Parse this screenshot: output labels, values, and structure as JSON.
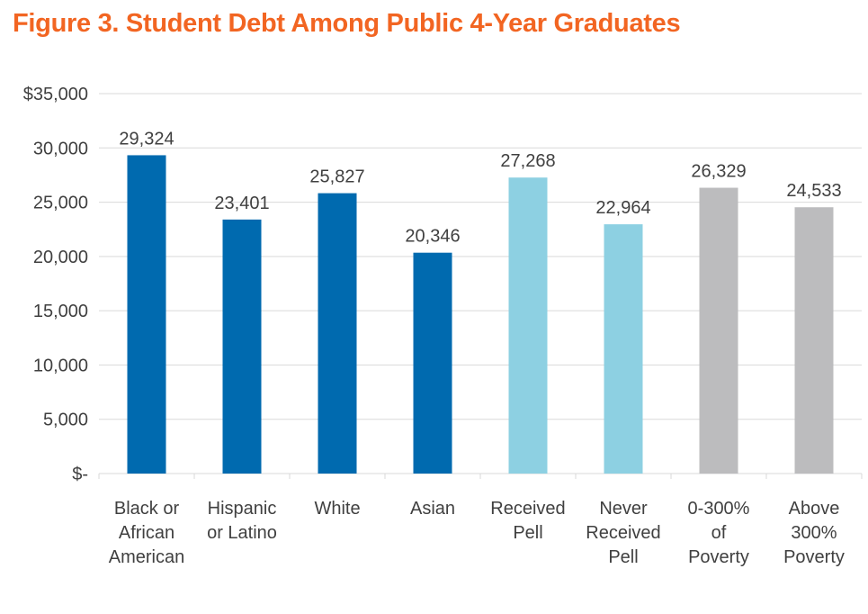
{
  "title": "Figure 3. Student Debt Among Public 4-Year Graduates",
  "chart_data": {
    "type": "bar",
    "title": "Figure 3. Student Debt Among Public 4-Year Graduates",
    "categories": [
      [
        "Black or",
        "African",
        "American"
      ],
      [
        "Hispanic",
        "or Latino"
      ],
      [
        "White"
      ],
      [
        "Asian"
      ],
      [
        "Received",
        "Pell"
      ],
      [
        "Never",
        "Received",
        "Pell"
      ],
      [
        "0-300%",
        "of",
        "Poverty"
      ],
      [
        "Above",
        "300%",
        "Poverty"
      ]
    ],
    "values": [
      29324,
      23401,
      25827,
      20346,
      27268,
      22964,
      26329,
      24533
    ],
    "data_labels": [
      "29,324",
      "23,401",
      "25,827",
      "20,346",
      "27,268",
      "22,964",
      "26,329",
      "24,533"
    ],
    "bar_colors": [
      "#006aaf",
      "#006aaf",
      "#006aaf",
      "#006aaf",
      "#8dd0e2",
      "#8dd0e2",
      "#bcbcbe",
      "#bcbcbe"
    ],
    "y_ticks": [
      0,
      5000,
      10000,
      15000,
      20000,
      25000,
      30000,
      35000
    ],
    "y_tick_labels": [
      "$-",
      "5,000",
      "10,000",
      "15,000",
      "20,000",
      "25,000",
      "30,000",
      "$35,000"
    ],
    "ylim": [
      0,
      35000
    ],
    "xlabel": "",
    "ylabel": "",
    "grid": true,
    "legend": "none"
  }
}
